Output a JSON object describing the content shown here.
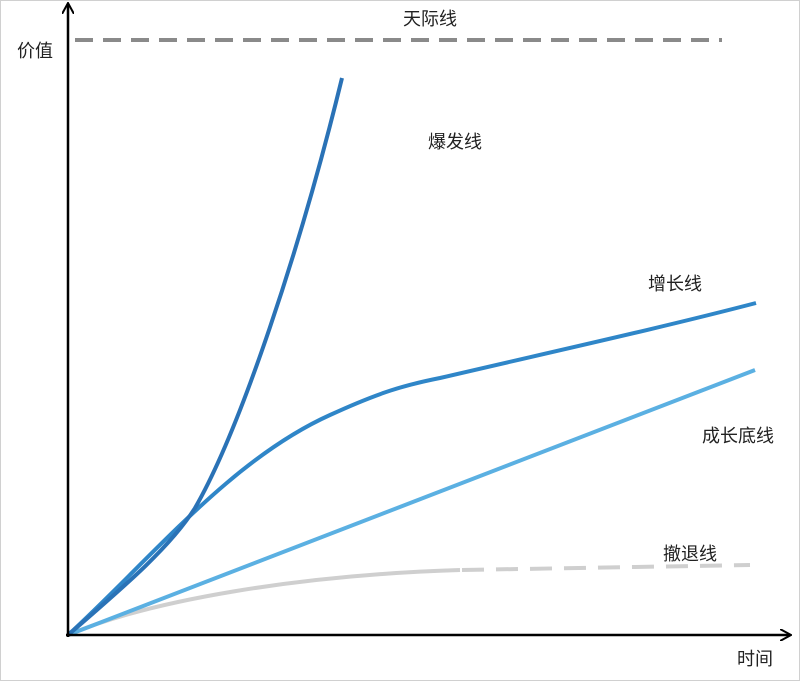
{
  "axes": {
    "y_label": "价值",
    "x_label": "时间"
  },
  "lines": [
    {
      "label": "天际线"
    },
    {
      "label": "爆发线"
    },
    {
      "label": "增长线"
    },
    {
      "label": "成长底线"
    },
    {
      "label": "撤退线"
    }
  ]
}
